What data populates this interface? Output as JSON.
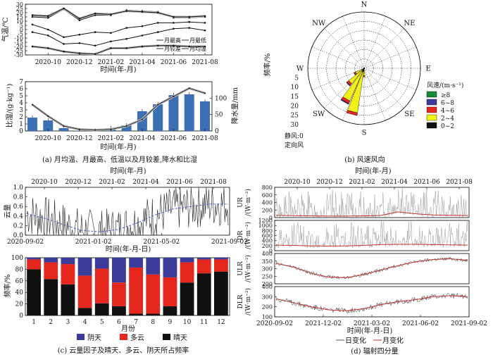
{
  "colors": {
    "bar_blue": "#3d6fb4",
    "overcast": "#3b3b9a",
    "cloudy": "#e5271e",
    "sunny": "#111111",
    "monthly_red": "#c0342f",
    "daily_gray": "#8a8a8a",
    "wind_ge8": "#1a8a3a",
    "wind_6_8": "#3b3b9a",
    "wind_4_6": "#e5271e",
    "wind_2_4": "#f3f017",
    "wind_0_2": "#111111"
  },
  "panel_a": {
    "caption": "(a) 月均温、月最高、低温以及月较差,降水和比湿",
    "ylabel_top": "气温/℃",
    "ylabel_bottom": "比湿/(g·kg⁻¹)",
    "ylabel_right": "降水量/mm",
    "xlabel": "时间(年-月)",
    "xtick_labels": [
      "2020-10",
      "2020-12",
      "2021-02",
      "2021-04",
      "2021-06",
      "2021-08"
    ],
    "legend": [
      "月最高",
      "月最低",
      "月较差",
      "月均温"
    ]
  },
  "panel_b": {
    "caption": "(b) 风速风向",
    "ylabel": "频率/%",
    "directions": [
      "N",
      "NE",
      "E",
      "SE",
      "S",
      "SW",
      "W",
      "NW"
    ],
    "radial_ticks": [
      "5",
      "10",
      "15",
      "20",
      "25",
      "30"
    ],
    "calm_label_1": "静风:0",
    "calm_label_2": "定向风",
    "legend_title": "风速/(m·s⁻¹)",
    "legend": [
      "≥8",
      "6~8",
      "4~6",
      "2~4",
      "0~2"
    ]
  },
  "panel_c": {
    "caption": "(c) 云量因子及晴天、多云、阴天所占频率",
    "top_xlabel": "时间(年-月)",
    "top_ticks": [
      "2020-10",
      "2020-12",
      "2021-02",
      "2021-04",
      "2021-06",
      "2021-08"
    ],
    "ylabel_top": "云量",
    "bottom_ticks": [
      "2020-09-02",
      "2021-01-02",
      "2021-05-02",
      "2021-09-02"
    ],
    "mid_xlabel": "时间(年-月-日)",
    "ylabel_bottom": "频率/%",
    "xlabel_bottom": "月份",
    "legend": [
      "阴天",
      "多云",
      "晴天"
    ]
  },
  "panel_d": {
    "caption": "(d) 辐射四分量",
    "top_xlabel": "时间(年-月)",
    "top_ticks": [
      "2020-10",
      "2020-12",
      "2021-02",
      "2021-04",
      "2021-06",
      "2021-08"
    ],
    "ylabels": [
      "UR\n/(W·m⁻²)",
      "DR\n/(W·m⁻²)",
      "ULR\n/(W·m⁻²)",
      "DLR\n/(W·m⁻²)"
    ],
    "bottom_ticks": [
      "2020-09-02",
      "2021-12-02",
      "2021-03-02",
      "2021-06-02",
      "2021-09-02"
    ],
    "xlabel": "时间(年-月-日)",
    "legend": [
      "日变化",
      "月变化"
    ]
  },
  "chart_data": [
    {
      "id": "a-temperature",
      "type": "line",
      "categories": [
        "2020-09",
        "2020-10",
        "2020-11",
        "2020-12",
        "2021-01",
        "2021-02",
        "2021-03",
        "2021-04",
        "2021-05",
        "2021-06",
        "2021-07",
        "2021-08"
      ],
      "x_tick_labels": [
        "2020-10",
        "2020-12",
        "2021-02",
        "2021-04",
        "2021-06",
        "2021-08"
      ],
      "ylabel": "气温/℃",
      "ylim": [
        -30,
        30
      ],
      "yticks": [
        -30,
        -25,
        -20,
        -15,
        -10,
        -5,
        0,
        5,
        10,
        15,
        20,
        25,
        30
      ],
      "series": [
        {
          "name": "月最高",
          "values": [
            15,
            14,
            24,
            11,
            17,
            17,
            23,
            22,
            21,
            14,
            14,
            15
          ]
        },
        {
          "name": "月较差",
          "values": [
            17,
            16,
            25,
            13,
            19,
            18,
            22,
            21,
            20,
            15,
            15,
            16
          ]
        },
        {
          "name": "月均温",
          "values": [
            6,
            0,
            -9,
            -6,
            -3,
            -4,
            2,
            4,
            8,
            8,
            9,
            8
          ]
        },
        {
          "name": "月最低",
          "values": [
            -3,
            -7,
            -17,
            -16,
            -19,
            -14,
            -11,
            -7,
            -3,
            1,
            2,
            -1
          ]
        },
        {
          "name": "",
          "values": [
            -20,
            -22,
            -26,
            -28,
            -29,
            -22,
            -22,
            -20,
            -19,
            -19,
            -20,
            -20
          ]
        }
      ]
    },
    {
      "id": "a-humidity-precip",
      "type": "bar",
      "categories": [
        "2020-09",
        "2020-10",
        "2020-11",
        "2020-12",
        "2021-01",
        "2021-02",
        "2021-03",
        "2021-04",
        "2021-05",
        "2021-06",
        "2021-07",
        "2021-08"
      ],
      "ylabel": "比湿/(g·kg⁻¹)",
      "ylim": [
        0,
        7
      ],
      "yticks": [
        0,
        1,
        2,
        3,
        4,
        5,
        6,
        7
      ],
      "y2label": "降水量/mm",
      "y2lim": [
        0,
        150
      ],
      "y2ticks": [
        0,
        50,
        100
      ],
      "series": [
        {
          "name": "比湿",
          "type": "bar",
          "values": [
            1.9,
            1.5,
            0.4,
            0.05,
            0.05,
            0.4,
            0.8,
            2.8,
            3.8,
            5.1,
            5.2,
            4.2
          ]
        },
        {
          "name": "降水量",
          "type": "line",
          "values": [
            80,
            45,
            15,
            5,
            3,
            5,
            15,
            35,
            80,
            105,
            130,
            115
          ]
        }
      ]
    },
    {
      "id": "b-windrose",
      "type": "windrose",
      "directions": [
        "N",
        "NE",
        "E",
        "SE",
        "S",
        "SW",
        "W",
        "NW"
      ],
      "radial_max": 30,
      "speed_bins": [
        "≥8",
        "6~8",
        "4~6",
        "2~4",
        "0~2"
      ],
      "petals": [
        {
          "direction_deg": 195,
          "frequencies": [
            0,
            0,
            1.5,
            22,
            2
          ]
        },
        {
          "direction_deg": 210,
          "frequencies": [
            0,
            0.5,
            1.5,
            17,
            2
          ]
        },
        {
          "direction_deg": 225,
          "frequencies": [
            0,
            0.5,
            1.2,
            9,
            1.5
          ]
        },
        {
          "direction_deg": 240,
          "frequencies": [
            0,
            0.2,
            0.8,
            4,
            1
          ]
        },
        {
          "direction_deg": 180,
          "frequencies": [
            0,
            0,
            0.5,
            3,
            1
          ]
        }
      ]
    },
    {
      "id": "c-cloud-factor",
      "type": "line",
      "x_range": [
        "2020-09-02",
        "2021-09-02"
      ],
      "ylabel": "云量",
      "ylim": [
        0,
        1
      ],
      "yticks": [
        0,
        0.2,
        0.4,
        0.6,
        0.8,
        1.0
      ],
      "series": [
        {
          "name": "日变化",
          "values_note": "daily series fluctuating between 0 and 1"
        },
        {
          "name": "月变化",
          "values": [
            0.45,
            0.35,
            0.22,
            0.1,
            0.07,
            0.12,
            0.25,
            0.42,
            0.55,
            0.6,
            0.65,
            0.65
          ]
        }
      ]
    },
    {
      "id": "c-sky-frequency",
      "type": "bar",
      "stacked": true,
      "categories": [
        "1",
        "2",
        "3",
        "4",
        "5",
        "6",
        "7",
        "8",
        "9",
        "10",
        "11",
        "12"
      ],
      "ylabel": "频率/%",
      "ylim": [
        0,
        100
      ],
      "yticks": [
        0,
        20,
        40,
        60,
        80,
        100
      ],
      "series": [
        {
          "name": "晴天",
          "values": [
            80,
            63,
            54,
            13,
            21,
            16,
            3,
            3,
            16,
            57,
            73,
            76
          ]
        },
        {
          "name": "多云",
          "values": [
            17,
            29,
            35,
            56,
            60,
            41,
            80,
            68,
            50,
            35,
            24,
            21
          ]
        },
        {
          "name": "阴天",
          "values": [
            3,
            8,
            11,
            31,
            19,
            43,
            17,
            29,
            34,
            8,
            3,
            3
          ]
        }
      ]
    },
    {
      "id": "d-UR",
      "type": "line",
      "ylabel": "UR /(W·m⁻²)",
      "ylim": [
        0,
        800
      ],
      "yticks": [
        0,
        200,
        400,
        600,
        800
      ],
      "series": [
        {
          "name": "月变化",
          "values": [
            60,
            50,
            45,
            40,
            40,
            45,
            55,
            150,
            100,
            70,
            60,
            55
          ]
        }
      ]
    },
    {
      "id": "d-DR",
      "type": "line",
      "ylabel": "DR /(W·m⁻²)",
      "ylim": [
        0,
        1200
      ],
      "yticks": [
        0,
        200,
        400,
        600,
        800,
        1000,
        1200
      ],
      "series": [
        {
          "name": "月变化",
          "values": [
            220,
            210,
            190,
            180,
            190,
            210,
            240,
            250,
            250,
            240,
            230,
            220
          ]
        }
      ]
    },
    {
      "id": "d-ULR",
      "type": "line",
      "ylabel": "ULR /(W·m⁻²)",
      "ylim": [
        200,
        400
      ],
      "yticks": [
        200,
        250,
        300,
        350,
        400
      ],
      "series": [
        {
          "name": "月变化",
          "values": [
            335,
            310,
            270,
            245,
            240,
            260,
            290,
            320,
            345,
            360,
            365,
            355
          ]
        }
      ]
    },
    {
      "id": "d-DLR",
      "type": "line",
      "ylabel": "DLR /(W·m⁻²)",
      "ylim": [
        100,
        400
      ],
      "yticks": [
        100,
        200,
        300,
        400
      ],
      "series": [
        {
          "name": "月变化",
          "values": [
            280,
            240,
            200,
            170,
            160,
            180,
            220,
            250,
            270,
            300,
            310,
            300
          ]
        }
      ]
    }
  ]
}
